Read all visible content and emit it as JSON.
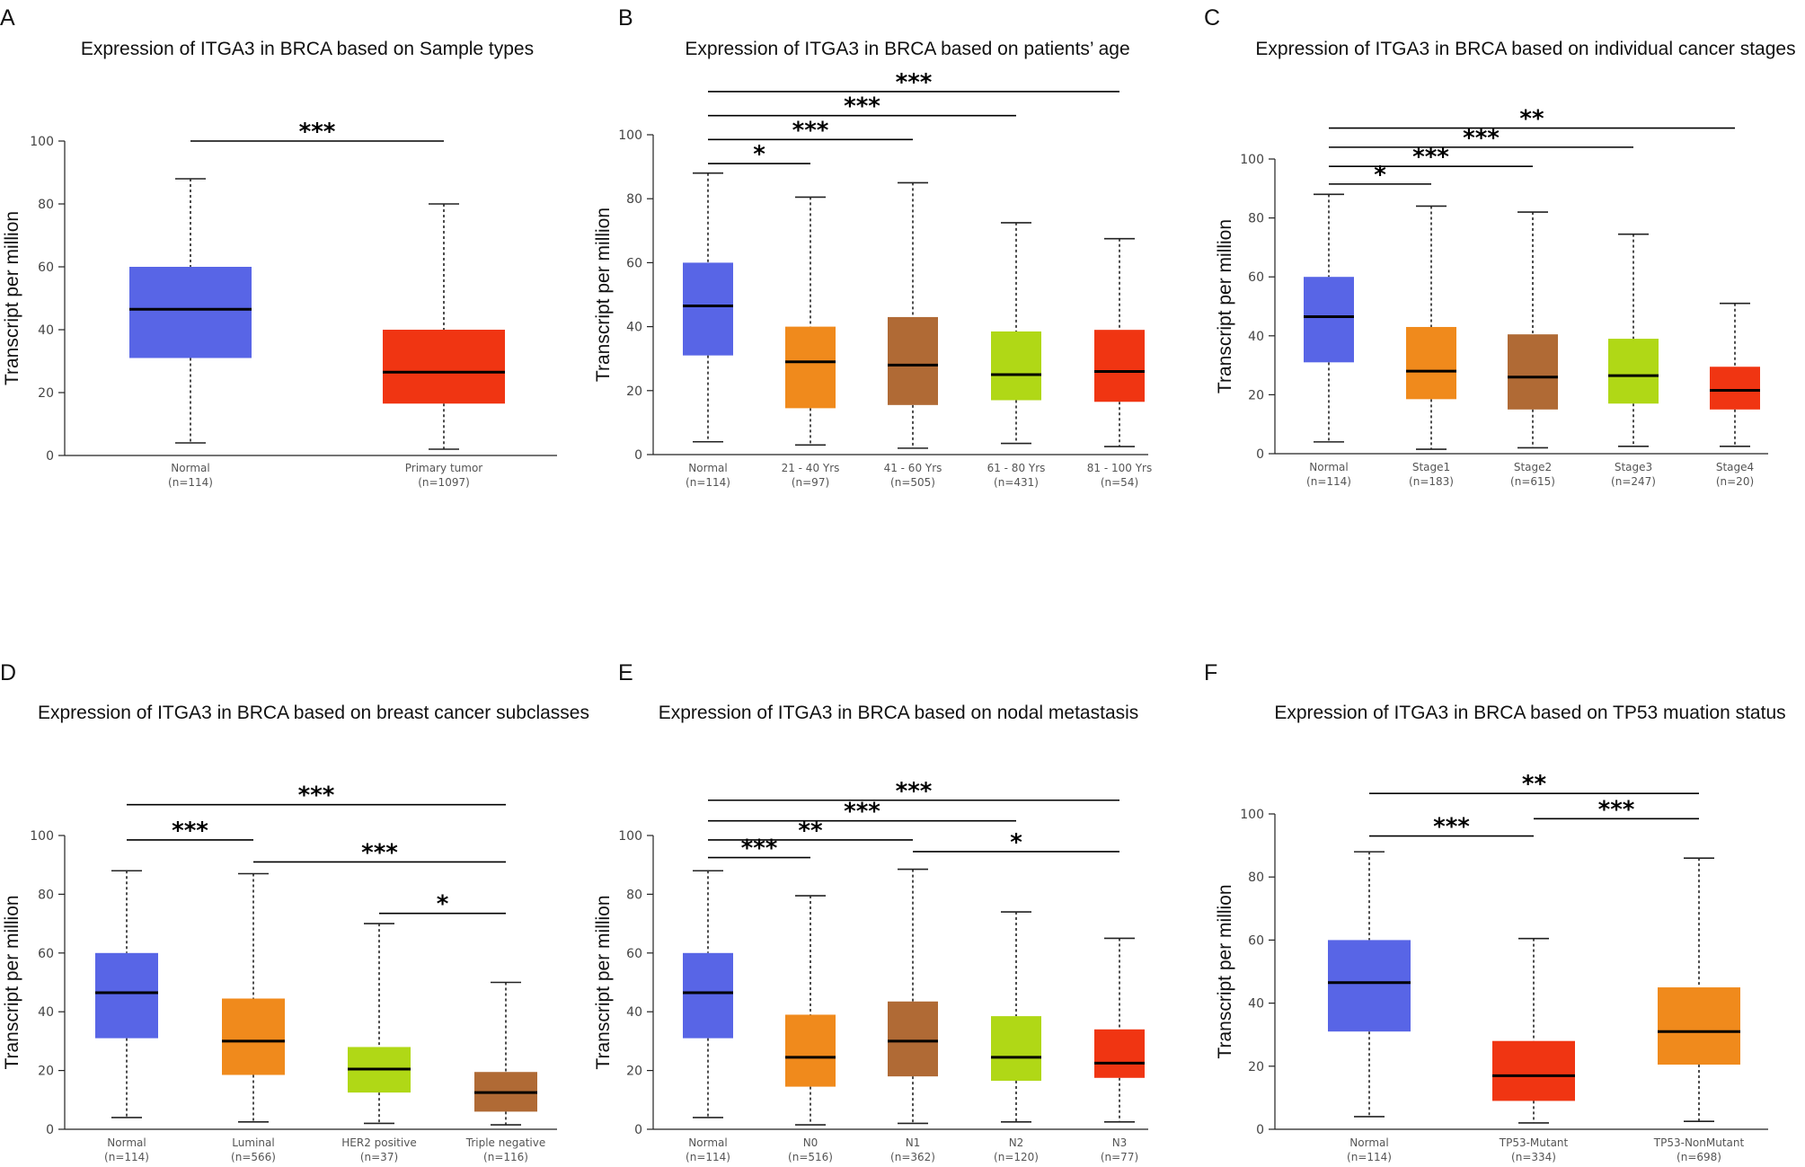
{
  "colors": {
    "blue": "#5865e6",
    "red": "#f03512",
    "orange": "#f08a1c",
    "brown": "#b06a35",
    "green": "#b0d816"
  },
  "chart_data": [
    {
      "panel": "A",
      "type": "box",
      "title": "Expression of ITGA3 in BRCA based on Sample types",
      "ylabel": "Transcript per million",
      "ylim": [
        0,
        100
      ],
      "yticks": [
        0,
        20,
        40,
        60,
        80,
        100
      ],
      "groups": [
        {
          "name": "Normal",
          "n": "(n=114)",
          "min": 4,
          "q1": 31,
          "median": 46.5,
          "q3": 60,
          "max": 88,
          "color": "blue"
        },
        {
          "name": "Primary tumor",
          "n": "(n=1097)",
          "min": 2,
          "q1": 16.5,
          "median": 26.5,
          "q3": 40,
          "max": 80,
          "color": "red"
        }
      ],
      "significance": [
        {
          "from": 0,
          "to": 1,
          "y": 100,
          "label": "***"
        }
      ]
    },
    {
      "panel": "B",
      "type": "box",
      "title": "Expression of ITGA3 in BRCA based on patients’ age",
      "ylabel": "Transcript per million",
      "ylim": [
        0,
        100
      ],
      "yticks": [
        0,
        20,
        40,
        60,
        80,
        100
      ],
      "groups": [
        {
          "name": "Normal",
          "n": "(n=114)",
          "min": 4,
          "q1": 31,
          "median": 46.5,
          "q3": 60,
          "max": 88,
          "color": "blue"
        },
        {
          "name": "21 - 40 Yrs",
          "n": "(n=97)",
          "min": 3,
          "q1": 14.5,
          "median": 29,
          "q3": 40,
          "max": 80.5,
          "color": "orange"
        },
        {
          "name": "41 - 60 Yrs",
          "n": "(n=505)",
          "min": 2,
          "q1": 15.5,
          "median": 28,
          "q3": 43,
          "max": 85,
          "color": "brown"
        },
        {
          "name": "61 - 80 Yrs",
          "n": "(n=431)",
          "min": 3.5,
          "q1": 17,
          "median": 25,
          "q3": 38.5,
          "max": 72.5,
          "color": "green"
        },
        {
          "name": "81 - 100 Yrs",
          "n": "(n=54)",
          "min": 2.5,
          "q1": 16.5,
          "median": 26,
          "q3": 39,
          "max": 67.5,
          "color": "red"
        }
      ],
      "significance": [
        {
          "from": 0,
          "to": 1,
          "y": 91,
          "label": "*"
        },
        {
          "from": 0,
          "to": 2,
          "y": 98.5,
          "label": "***"
        },
        {
          "from": 0,
          "to": 3,
          "y": 106,
          "label": "***"
        },
        {
          "from": 0,
          "to": 4,
          "y": 113.5,
          "label": "***"
        }
      ]
    },
    {
      "panel": "C",
      "type": "box",
      "title": "Expression of ITGA3 in BRCA based on individual cancer stages",
      "ylabel": "Transcript per million",
      "ylim": [
        0,
        100
      ],
      "yticks": [
        0,
        20,
        40,
        60,
        80,
        100
      ],
      "groups": [
        {
          "name": "Normal",
          "n": "(n=114)",
          "min": 4,
          "q1": 31,
          "median": 46.5,
          "q3": 60,
          "max": 88,
          "color": "blue"
        },
        {
          "name": "Stage1",
          "n": "(n=183)",
          "min": 1.5,
          "q1": 18.5,
          "median": 28,
          "q3": 43,
          "max": 84,
          "color": "orange"
        },
        {
          "name": "Stage2",
          "n": "(n=615)",
          "min": 2,
          "q1": 15,
          "median": 26,
          "q3": 40.5,
          "max": 82,
          "color": "brown"
        },
        {
          "name": "Stage3",
          "n": "(n=247)",
          "min": 2.5,
          "q1": 17,
          "median": 26.5,
          "q3": 39,
          "max": 74.5,
          "color": "green"
        },
        {
          "name": "Stage4",
          "n": "(n=20)",
          "min": 2.5,
          "q1": 15,
          "median": 21.5,
          "q3": 29.5,
          "max": 51,
          "color": "red"
        }
      ],
      "significance": [
        {
          "from": 0,
          "to": 1,
          "y": 91.5,
          "label": "*"
        },
        {
          "from": 0,
          "to": 2,
          "y": 97.5,
          "label": "***"
        },
        {
          "from": 0,
          "to": 3,
          "y": 104,
          "label": "***"
        },
        {
          "from": 0,
          "to": 4,
          "y": 110.5,
          "label": "**"
        }
      ]
    },
    {
      "panel": "D",
      "type": "box",
      "title": "Expression of ITGA3 in BRCA based on breast cancer subclasses",
      "ylabel": "Transcript per million",
      "ylim": [
        0,
        100
      ],
      "yticks": [
        0,
        20,
        40,
        60,
        80,
        100
      ],
      "groups": [
        {
          "name": "Normal",
          "n": "(n=114)",
          "min": 4,
          "q1": 31,
          "median": 46.5,
          "q3": 60,
          "max": 88,
          "color": "blue"
        },
        {
          "name": "Luminal",
          "n": "(n=566)",
          "min": 2.5,
          "q1": 18.5,
          "median": 30,
          "q3": 44.5,
          "max": 87,
          "color": "orange"
        },
        {
          "name": "HER2 positive",
          "n": "(n=37)",
          "min": 2,
          "q1": 12.5,
          "median": 20.5,
          "q3": 28,
          "max": 70,
          "color": "green"
        },
        {
          "name": "Triple negative",
          "n": "(n=116)",
          "min": 1.5,
          "q1": 6,
          "median": 12.5,
          "q3": 19.5,
          "max": 50,
          "color": "brown"
        }
      ],
      "significance": [
        {
          "from": 2,
          "to": 3,
          "y": 73.5,
          "label": "*"
        },
        {
          "from": 1,
          "to": 3,
          "y": 91,
          "label": "***"
        },
        {
          "from": 0,
          "to": 1,
          "y": 98.5,
          "label": "***"
        },
        {
          "from": 0,
          "to": 3,
          "y": 110.5,
          "label": "***"
        }
      ]
    },
    {
      "panel": "E",
      "type": "box",
      "title": "Expression of ITGA3 in BRCA based on nodal metastasis",
      "ylabel": "Transcript per million",
      "ylim": [
        0,
        100
      ],
      "yticks": [
        0,
        20,
        40,
        60,
        80,
        100
      ],
      "groups": [
        {
          "name": "Normal",
          "n": "(n=114)",
          "min": 4,
          "q1": 31,
          "median": 46.5,
          "q3": 60,
          "max": 88,
          "color": "blue"
        },
        {
          "name": "N0",
          "n": "(n=516)",
          "min": 1.5,
          "q1": 14.5,
          "median": 24.5,
          "q3": 39,
          "max": 79.5,
          "color": "orange"
        },
        {
          "name": "N1",
          "n": "(n=362)",
          "min": 2,
          "q1": 18,
          "median": 30,
          "q3": 43.5,
          "max": 88.5,
          "color": "brown"
        },
        {
          "name": "N2",
          "n": "(n=120)",
          "min": 2.5,
          "q1": 16.5,
          "median": 24.5,
          "q3": 38.5,
          "max": 74,
          "color": "green"
        },
        {
          "name": "N3",
          "n": "(n=77)",
          "min": 2.5,
          "q1": 17.5,
          "median": 22.5,
          "q3": 34,
          "max": 65,
          "color": "red"
        }
      ],
      "significance": [
        {
          "from": 0,
          "to": 1,
          "y": 92.5,
          "label": "***"
        },
        {
          "from": 2,
          "to": 4,
          "y": 94.5,
          "label": "*"
        },
        {
          "from": 0,
          "to": 2,
          "y": 98.5,
          "label": "**"
        },
        {
          "from": 0,
          "to": 3,
          "y": 105,
          "label": "***"
        },
        {
          "from": 0,
          "to": 4,
          "y": 112,
          "label": "***"
        }
      ]
    },
    {
      "panel": "F",
      "type": "box",
      "title": "Expression of ITGA3 in BRCA based on TP53 muation status",
      "ylabel": "Transcript per million",
      "ylim": [
        0,
        100
      ],
      "yticks": [
        0,
        20,
        40,
        60,
        80,
        100
      ],
      "groups": [
        {
          "name": "Normal",
          "n": "(n=114)",
          "min": 4,
          "q1": 31,
          "median": 46.5,
          "q3": 60,
          "max": 88,
          "color": "blue"
        },
        {
          "name": "TP53-Mutant",
          "n": "(n=334)",
          "min": 2,
          "q1": 9,
          "median": 17,
          "q3": 28,
          "max": 60.5,
          "color": "red"
        },
        {
          "name": "TP53-NonMutant",
          "n": "(n=698)",
          "min": 2.5,
          "q1": 20.5,
          "median": 31,
          "q3": 45,
          "max": 86,
          "color": "orange"
        }
      ],
      "significance": [
        {
          "from": 1,
          "to": 2,
          "y": 98.5,
          "label": "***"
        },
        {
          "from": 0,
          "to": 1,
          "y": 93,
          "label": "***"
        },
        {
          "from": 0,
          "to": 2,
          "y": 106.5,
          "label": "**"
        }
      ]
    }
  ]
}
